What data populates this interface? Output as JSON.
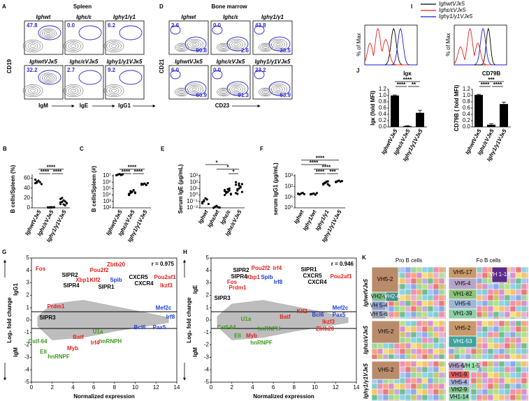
{
  "A": {
    "label": "A",
    "title": "Spleen",
    "y_axis": "CD19",
    "x_axes": [
      "IgM",
      "IgE",
      "IgG1"
    ],
    "plots": [
      {
        "genotype": "Ighwt",
        "gate": "47.8"
      },
      {
        "genotype": "Ighε/ε",
        "gate": "0.0"
      },
      {
        "genotype": "Ighγ1/γ1",
        "gate": "6.2"
      },
      {
        "genotype": "IghwtVJκ5",
        "gate": "32.2"
      },
      {
        "genotype": "Ighε/εVJκ5",
        "gate": "2.7"
      },
      {
        "genotype": "Ighγ1/γ1VJκ5",
        "gate": "9.2"
      }
    ]
  },
  "D": {
    "label": "D",
    "title": "Bone marrow",
    "y_axis": "CD21",
    "x_axis": "CD23",
    "plots": [
      {
        "genotype": "Ighwt",
        "gates": [
          "2.6",
          "90.8"
        ]
      },
      {
        "genotype": "Ighε/ε",
        "gates": [
          "0.0",
          "2.6"
        ]
      },
      {
        "genotype": "Ighγ1/γ1",
        "gates": [
          "43.8",
          "38.5"
        ]
      },
      {
        "genotype": "IghwtVJκ5",
        "gates": [
          "6.0",
          "66.9"
        ]
      },
      {
        "genotype": "Ighε/εVJκ5",
        "gates": [
          "0.0",
          "91.3"
        ]
      },
      {
        "genotype": "Ighγ1/γ1VJκ5",
        "gates": [
          "23.2",
          "63.9"
        ]
      }
    ]
  },
  "I": {
    "label": "I",
    "y_axis": "% of Max",
    "legend": [
      {
        "name": "IghwtVJκ5",
        "color": "#000000"
      },
      {
        "name": "Ighε/εVJκ5",
        "color": "#e8201c"
      },
      {
        "name": "Ighγ1/γ1VJκ5",
        "color": "#1a1adb"
      }
    ]
  },
  "J": {
    "label": "J",
    "categories": [
      "IghwtVJκ5",
      "Ighε/εVJκ5",
      "Ighγ1/γ1VJκ5"
    ],
    "ylim": [
      0,
      1.2
    ],
    "yticks": [
      {
        "value": 0,
        "label": "0.0"
      },
      0.2,
      0.4,
      0.6,
      0.8,
      {
        "value": 1,
        "label": "1.0"
      },
      1.2
    ],
    "charts": [
      {
        "title": "Igκ",
        "y_axis": "Igκ (fold MFI)",
        "values": [
          1.0,
          0.03,
          0.45
        ],
        "errors": [
          0.02,
          0.01,
          0.08
        ],
        "significance": [
          "****",
          "****",
          "**"
        ]
      },
      {
        "title": "CD79B",
        "y_axis": "CD79B ( fold MFI)",
        "values": [
          1.02,
          0.07,
          0.73
        ],
        "errors": [
          0.02,
          0.03,
          0.06
        ],
        "significance": [
          "***",
          "****",
          "****"
        ]
      }
    ]
  },
  "B": {
    "label": "B",
    "y_axis": "B cells/Spleen (%)",
    "categories": [
      "IghwtVJκ5",
      "Ighε/εVJκ5",
      "Ighγ1/γ1VJκ5"
    ],
    "log_scale": false,
    "ylim": [
      0,
      65
    ],
    "yticks": [
      0,
      20,
      40,
      60
    ],
    "groups": [
      [
        50,
        53,
        55,
        52,
        48,
        57,
        51
      ],
      [
        1,
        0.5,
        1.5,
        0.8,
        1.2,
        0.7,
        1,
        0.6
      ],
      [
        8,
        12,
        15,
        5,
        10,
        18,
        20,
        7,
        13,
        9,
        11
      ]
    ],
    "significance": [
      "****",
      "****",
      "****"
    ]
  },
  "C": {
    "label": "C",
    "y_axis": "B cells/Spleen (#)",
    "categories": [
      "IghwtVJκ5",
      "Ighε/εVJκ5",
      "Ighγ1/γ1VJκ5"
    ],
    "log_scale": true,
    "ylim": [
      100,
      10000000
    ],
    "yticks": [
      {
        "value": 100,
        "label": "10²"
      },
      {
        "value": 1000,
        "label": "10³"
      },
      {
        "value": 10000,
        "label": "10⁴"
      },
      {
        "value": 100000,
        "label": "10⁵"
      },
      {
        "value": 1000000,
        "label": "10⁶"
      },
      {
        "value": 10000000,
        "label": "10⁷"
      }
    ],
    "groups": [
      [
        12000000,
        15000000,
        18000000,
        13000000,
        16000000
      ],
      [
        10000,
        20000,
        30000,
        50000,
        25000,
        15000,
        40000,
        30000,
        60000,
        20000,
        12000
      ],
      [
        400000,
        500000,
        600000,
        350000,
        700000,
        550000,
        450000
      ]
    ],
    "significance": [
      "****",
      "****",
      "****"
    ]
  },
  "E": {
    "label": "E",
    "y_axis": "Serum IgE (µg/mL)",
    "categories": [
      "Ighwt",
      "Ighε/wt",
      "Ighε/ε",
      "Ighε/εVJκ5"
    ],
    "log_scale": true,
    "ylim": [
      0.01,
      1000
    ],
    "yticks": [
      {
        "value": 0.01,
        "label": "10⁻²"
      },
      {
        "value": 0.1,
        "label": "10⁻¹"
      },
      {
        "value": 1,
        "label": "10⁰"
      },
      {
        "value": 10,
        "label": "10¹"
      },
      {
        "value": 100,
        "label": "10²"
      },
      {
        "value": 1000,
        "label": "10³"
      }
    ],
    "groups": [
      [
        0.05,
        0.1,
        0.3,
        0.2,
        0.04,
        0.08,
        0.15
      ],
      [
        0.01,
        0.015,
        0.02,
        0.012,
        0.011
      ],
      [
        1,
        2,
        3,
        5,
        1.5,
        4,
        2.5,
        8,
        10,
        1.2,
        6,
        3
      ],
      [
        2,
        5,
        10,
        20,
        50,
        100,
        8,
        30,
        15,
        3,
        40,
        1.5,
        60
      ]
    ],
    "significance": [
      "*",
      "*",
      "*"
    ]
  },
  "F": {
    "label": "F",
    "y_axis": "serum IgG1 (µg/mL)",
    "categories": [
      "Ighwt",
      "Ighγ1/wt",
      "Ighγ1/γ1",
      "Ighγ1/γ1VJκ5"
    ],
    "log_scale": true,
    "ylim": [
      1,
      1000
    ],
    "yticks": [
      {
        "value": 1,
        "label": "10⁰"
      },
      {
        "value": 10,
        "label": "10¹"
      },
      {
        "value": 100,
        "label": "10²"
      },
      {
        "value": 1000,
        "label": "10³"
      }
    ],
    "groups": [
      [
        20,
        18,
        22,
        25,
        19,
        21
      ],
      [
        18,
        20,
        22,
        17,
        24,
        19
      ],
      [
        150,
        200,
        250,
        300,
        120,
        180,
        220,
        280,
        160
      ],
      [
        250,
        300,
        350,
        280,
        320,
        270
      ]
    ],
    "significance": [
      "****",
      "****",
      "****",
      "****",
      "***"
    ]
  },
  "G": {
    "label": "G",
    "r": "r = 0.975",
    "y_axis": "Log₂ fold change",
    "up": "IgG1",
    "down": "IgM",
    "x_axis": "Normalized expression",
    "xlim": [
      0,
      14
    ],
    "ylim": [
      -5,
      5
    ],
    "xticks": [
      0,
      2,
      4,
      6,
      8,
      10,
      12,
      14
    ],
    "yticks": [
      -5,
      -4,
      -3,
      -2,
      -1,
      0,
      1,
      2,
      3,
      4,
      5
    ],
    "genes": [
      {
        "name": "Fos",
        "color": "#e8201c"
      },
      {
        "name": "SIPR2",
        "color": "#000000"
      },
      {
        "name": "Xbp1",
        "color": "#e8201c"
      },
      {
        "name": "Klf2",
        "color": "#e8201c"
      },
      {
        "name": "Pou2f2",
        "color": "#e8201c"
      },
      {
        "name": "Zbtb20",
        "color": "#e8201c"
      },
      {
        "name": "Spib",
        "color": "#1a3fdb"
      },
      {
        "name": "SIPR4",
        "color": "#000000"
      },
      {
        "name": "SIPR1",
        "color": "#000000"
      },
      {
        "name": "CXCR5",
        "color": "#000000"
      },
      {
        "name": "CXCR4",
        "color": "#000000"
      },
      {
        "name": "Pou2af1",
        "color": "#e8201c"
      },
      {
        "name": "Ikzf3",
        "color": "#e8201c"
      },
      {
        "name": "Mef2c",
        "color": "#1a3fdb"
      },
      {
        "name": "Irf8",
        "color": "#1a3fdb"
      },
      {
        "name": "Prdm1",
        "color": "#e8201c"
      },
      {
        "name": "SIPR3",
        "color": "#000000"
      },
      {
        "name": "Bcl6",
        "color": "#1a3fdb"
      },
      {
        "name": "Pax5",
        "color": "#1a3fdb"
      },
      {
        "name": "Cstf-64",
        "color": "#3a9a1a"
      },
      {
        "name": "Ell",
        "color": "#3a9a1a"
      },
      {
        "name": "hnRNPF",
        "color": "#3a9a1a"
      },
      {
        "name": "U1a",
        "color": "#3a9a1a"
      },
      {
        "name": "hnRNPH",
        "color": "#3a9a1a"
      },
      {
        "name": "Myb",
        "color": "#e8201c"
      },
      {
        "name": "Batf",
        "color": "#e8201c"
      },
      {
        "name": "Irf4",
        "color": "#e8201c"
      }
    ]
  },
  "H": {
    "label": "H",
    "r": "r = 0.946",
    "y_axis": "Log₂ fold change",
    "up": "IgE",
    "down": "IgM",
    "x_axis": "Normalized expression",
    "xlim": [
      0,
      14
    ],
    "ylim": [
      -5,
      5
    ],
    "xticks": [
      0,
      2,
      4,
      6,
      8,
      10,
      12,
      14
    ],
    "yticks": [
      -5,
      -4,
      -3,
      -2,
      -1,
      0,
      1,
      2,
      3,
      4,
      5
    ],
    "genes": [
      {
        "name": "SIPR2",
        "color": "#000000"
      },
      {
        "name": "SIPR4",
        "color": "#000000"
      },
      {
        "name": "Pou2f2",
        "color": "#e8201c"
      },
      {
        "name": "Irf4",
        "color": "#e8201c"
      },
      {
        "name": "Xbp1",
        "color": "#e8201c"
      },
      {
        "name": "Spib",
        "color": "#1a3fdb"
      },
      {
        "name": "Irf8",
        "color": "#1a3fdb"
      },
      {
        "name": "Fos",
        "color": "#e8201c"
      },
      {
        "name": "Prdm1",
        "color": "#e8201c"
      },
      {
        "name": "SIPR3",
        "color": "#000000"
      },
      {
        "name": "SIPR1",
        "color": "#000000"
      },
      {
        "name": "CXCR5",
        "color": "#000000"
      },
      {
        "name": "CXCR4",
        "color": "#000000"
      },
      {
        "name": "Pou2af1",
        "color": "#e8201c"
      },
      {
        "name": "Mef2c",
        "color": "#1a3fdb"
      },
      {
        "name": "Pax5",
        "color": "#1a3fdb"
      },
      {
        "name": "Bcl6",
        "color": "#1a3fdb"
      },
      {
        "name": "Ikzf3",
        "color": "#e8201c"
      },
      {
        "name": "Zbtb20",
        "color": "#e8201c"
      },
      {
        "name": "Klf2",
        "color": "#e8201c"
      },
      {
        "name": "hnRNPH",
        "color": "#3a9a1a"
      },
      {
        "name": "Cstf-64",
        "color": "#3a9a1a"
      },
      {
        "name": "U1a",
        "color": "#3a9a1a"
      },
      {
        "name": "Ell",
        "color": "#3a9a1a"
      },
      {
        "name": "Myb",
        "color": "#e8201c"
      },
      {
        "name": "hnRNPF",
        "color": "#3a9a1a"
      },
      {
        "name": "Batf",
        "color": "#e8201c"
      }
    ]
  },
  "K": {
    "label": "K",
    "columns": [
      "Pro B cells",
      "Fo B cells"
    ],
    "rows": [
      {
        "genotype": "IghwtVJκ5",
        "pro": [
          "VH5-2",
          "VH2-9",
          "VH2-6",
          "VH 5-4",
          "VH 5-6"
        ],
        "fo": [
          "VH 1-18",
          "VH5-17",
          "VH5-4",
          "VH1-82",
          "VH5-6",
          "VH1-39"
        ]
      },
      {
        "genotype": "Ighε/εVJκ5",
        "pro": [
          "VH5-2"
        ],
        "fo": [
          "VH5-2",
          "VH1-53"
        ]
      },
      {
        "genotype": "Ighγ1/γ1VJκ5",
        "pro": [
          "VH5-2"
        ],
        "fo": [
          "VH5-6",
          "VH 1-5",
          "VH1-9",
          "VH5-4",
          "VH2-9",
          "VH1-14"
        ]
      }
    ]
  }
}
